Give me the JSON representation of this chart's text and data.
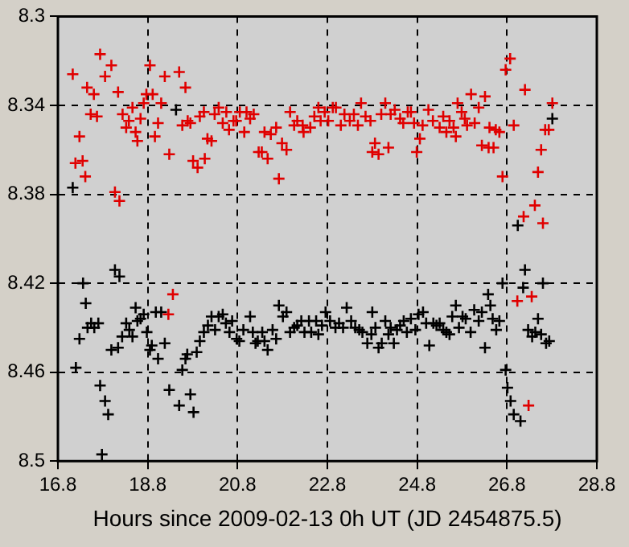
{
  "chart_data": {
    "type": "scatter",
    "xlabel": "Hours since 2009-02-13 0h UT (JD 2454875.5)",
    "xlim": [
      16.8,
      28.8
    ],
    "xticks": [
      16.8,
      18.8,
      20.8,
      22.8,
      24.8,
      26.8,
      28.8
    ],
    "ylim": [
      8.5,
      8.3
    ],
    "yticks": [
      8.3,
      8.34,
      8.38,
      8.42,
      8.46,
      8.5
    ],
    "grid": true,
    "marker": "cross",
    "legend": false,
    "series": [
      {
        "color": "#e00000",
        "x": [
          17.13,
          17.74,
          17.99,
          17.85,
          17.45,
          17.6,
          18.14,
          18.85,
          19.18,
          19.5,
          19.64,
          18.77,
          18.91,
          18.71,
          19.1,
          18.46,
          17.53,
          17.67,
          18.24,
          18.38,
          18.32,
          18.64,
          18.53,
          19.03,
          17.28,
          18.57,
          18.96,
          19.28,
          17.19,
          17.35,
          17.41,
          18.07,
          18.17,
          19.57,
          19.69,
          19.75,
          19.96,
          20.05,
          20.29,
          20.38,
          20.47,
          20.55,
          20.71,
          20.77,
          20.61,
          20.13,
          20.22,
          19.81,
          19.91,
          20.07,
          20.85,
          21.0,
          21.16,
          21.08,
          20.95,
          21.27,
          21.34,
          21.47,
          21.4,
          21.54,
          21.66,
          21.79,
          21.89,
          21.72,
          21.97,
          22.06,
          22.13,
          22.25,
          22.27,
          22.42,
          22.51,
          22.6,
          22.65,
          22.74,
          22.82,
          22.92,
          22.99,
          23.1,
          23.18,
          23.3,
          23.39,
          23.48,
          23.55,
          23.65,
          23.76,
          24.0,
          24.09,
          24.21,
          24.3,
          24.42,
          24.49,
          24.59,
          24.66,
          23.86,
          23.8,
          23.94,
          24.16,
          24.73,
          24.79,
          24.86,
          24.92,
          25.05,
          25.15,
          25.3,
          25.38,
          25.45,
          25.52,
          25.61,
          25.66,
          25.7,
          25.79,
          25.86,
          25.91,
          26.0,
          26.08,
          26.17,
          26.31,
          26.24,
          26.41,
          26.39,
          26.5,
          26.55,
          26.63,
          26.7,
          26.77,
          26.87,
          26.95,
          27.2,
          27.81,
          27.65,
          27.73,
          27.56,
          27.49,
          27.42,
          27.17,
          27.6,
          19.36,
          19.26,
          27.03,
          27.35,
          27.28
        ],
        "values": [
          8.326,
          8.317,
          8.322,
          8.327,
          8.332,
          8.335,
          8.334,
          8.322,
          8.327,
          8.325,
          8.332,
          8.335,
          8.335,
          8.339,
          8.339,
          8.341,
          8.344,
          8.345,
          8.344,
          8.347,
          8.35,
          8.346,
          8.352,
          8.348,
          8.354,
          8.356,
          8.354,
          8.362,
          8.366,
          8.365,
          8.372,
          8.379,
          8.383,
          8.349,
          8.347,
          8.348,
          8.345,
          8.343,
          8.344,
          8.341,
          8.348,
          8.343,
          8.347,
          8.347,
          8.351,
          8.355,
          8.356,
          8.365,
          8.368,
          8.364,
          8.343,
          8.343,
          8.344,
          8.346,
          8.352,
          8.361,
          8.361,
          8.364,
          8.352,
          8.353,
          8.35,
          8.357,
          8.36,
          8.373,
          8.343,
          8.349,
          8.347,
          8.349,
          8.352,
          8.35,
          8.345,
          8.341,
          8.347,
          8.343,
          8.347,
          8.341,
          8.341,
          8.349,
          8.344,
          8.347,
          8.344,
          8.349,
          8.339,
          8.345,
          8.347,
          8.344,
          8.339,
          8.344,
          8.342,
          8.346,
          8.348,
          8.343,
          8.343,
          8.357,
          8.361,
          8.362,
          8.359,
          8.348,
          8.361,
          8.355,
          8.349,
          8.342,
          8.347,
          8.35,
          8.345,
          8.352,
          8.347,
          8.35,
          8.354,
          8.339,
          8.343,
          8.346,
          8.349,
          8.335,
          8.348,
          8.341,
          8.336,
          8.358,
          8.35,
          8.359,
          8.359,
          8.351,
          8.352,
          8.372,
          8.324,
          8.319,
          8.349,
          8.333,
          8.339,
          8.351,
          8.351,
          8.36,
          8.37,
          8.385,
          8.39,
          8.393,
          8.425,
          8.434,
          8.428,
          8.426,
          8.475
        ]
      },
      {
        "color": "#000000",
        "x": [
          19.43,
          17.13,
          27.81,
          27.04,
          18.07,
          18.17,
          17.36,
          17.42,
          17.54,
          17.46,
          17.61,
          17.7,
          17.28,
          17.2,
          17.74,
          17.85,
          17.92,
          17.78,
          17.99,
          18.14,
          18.23,
          18.32,
          18.39,
          18.46,
          18.53,
          18.57,
          18.64,
          18.71,
          18.78,
          18.85,
          18.89,
          19.03,
          18.98,
          19.1,
          19.18,
          19.28,
          19.5,
          19.57,
          19.64,
          19.68,
          19.75,
          19.82,
          19.89,
          19.96,
          20.05,
          20.14,
          20.22,
          20.3,
          20.38,
          20.47,
          20.54,
          20.62,
          20.68,
          20.78,
          20.84,
          20.93,
          21.08,
          21.14,
          21.2,
          21.25,
          21.35,
          21.4,
          21.47,
          21.58,
          21.66,
          21.72,
          21.81,
          21.89,
          21.97,
          22.06,
          22.13,
          22.22,
          22.29,
          22.39,
          22.44,
          22.55,
          22.6,
          22.68,
          22.76,
          22.86,
          22.98,
          23.06,
          23.15,
          23.23,
          23.33,
          23.42,
          23.51,
          23.58,
          23.69,
          23.78,
          23.8,
          23.87,
          23.94,
          24.01,
          24.09,
          24.16,
          24.21,
          24.28,
          24.35,
          24.42,
          24.5,
          24.57,
          24.66,
          24.76,
          24.83,
          24.93,
          25.0,
          25.07,
          25.16,
          25.23,
          25.3,
          25.38,
          25.45,
          25.52,
          25.58,
          25.66,
          25.73,
          25.81,
          25.88,
          25.99,
          26.07,
          26.17,
          26.24,
          26.31,
          26.38,
          26.43,
          26.48,
          26.56,
          26.63,
          26.7,
          26.77,
          26.81,
          26.88,
          26.95,
          27.1,
          27.16,
          27.2,
          27.49,
          27.27,
          27.36,
          27.43,
          27.56,
          27.6,
          27.67,
          27.74
        ],
        "values": [
          8.342,
          8.377,
          8.346,
          8.394,
          8.414,
          8.417,
          8.42,
          8.429,
          8.438,
          8.44,
          8.44,
          8.438,
          8.445,
          8.458,
          8.466,
          8.473,
          8.479,
          8.497,
          8.45,
          8.449,
          8.444,
          8.438,
          8.441,
          8.444,
          8.431,
          8.437,
          8.436,
          8.434,
          8.442,
          8.45,
          8.448,
          8.454,
          8.433,
          8.433,
          8.447,
          8.468,
          8.475,
          8.459,
          8.454,
          8.452,
          8.47,
          8.478,
          8.451,
          8.446,
          8.442,
          8.439,
          8.435,
          8.441,
          8.435,
          8.434,
          8.438,
          8.442,
          8.437,
          8.445,
          8.446,
          8.441,
          8.435,
          8.442,
          8.447,
          8.446,
          8.442,
          8.446,
          8.45,
          8.441,
          8.445,
          8.43,
          8.435,
          8.433,
          8.442,
          8.44,
          8.439,
          8.437,
          8.442,
          8.437,
          8.442,
          8.437,
          8.443,
          8.439,
          8.433,
          8.437,
          8.44,
          8.438,
          8.44,
          8.431,
          8.437,
          8.44,
          8.441,
          8.442,
          8.447,
          8.443,
          8.433,
          8.44,
          8.449,
          8.447,
          8.437,
          8.443,
          8.44,
          8.447,
          8.441,
          8.439,
          8.437,
          8.442,
          8.436,
          8.441,
          8.434,
          8.433,
          8.438,
          8.448,
          8.438,
          8.439,
          8.438,
          8.441,
          8.442,
          8.443,
          8.435,
          8.43,
          8.44,
          8.435,
          8.436,
          8.442,
          8.432,
          8.437,
          8.433,
          8.449,
          8.425,
          8.43,
          8.436,
          8.441,
          8.437,
          8.42,
          8.459,
          8.467,
          8.473,
          8.479,
          8.482,
          8.422,
          8.414,
          8.436,
          8.441,
          8.444,
          8.442,
          8.443,
          8.42,
          8.447,
          8.446
        ]
      }
    ]
  }
}
